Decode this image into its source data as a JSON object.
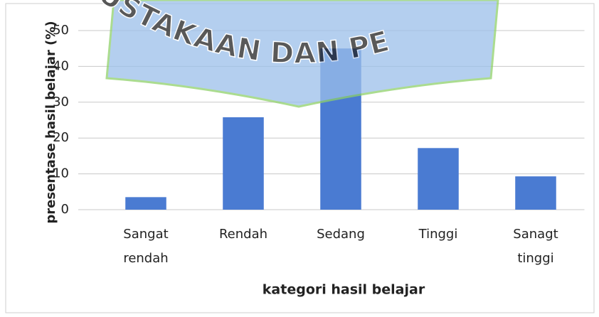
{
  "chart_data": {
    "type": "bar",
    "categories": [
      "Sangat rendah",
      "Rendah",
      "Sedang",
      "Tinggi",
      "Sanagt tinggi"
    ],
    "values": [
      3.5,
      25.8,
      45,
      17.2,
      9.3
    ],
    "color": "#4a7bd2",
    "ylim": [
      0,
      50
    ],
    "yticks": [
      0,
      10,
      20,
      30,
      40,
      50
    ],
    "grid": true,
    "x_label": "kategori hasil belajar",
    "y_label": "presentase hasil belajar (%)",
    "watermark": "USTAKAAN DAN PE"
  }
}
